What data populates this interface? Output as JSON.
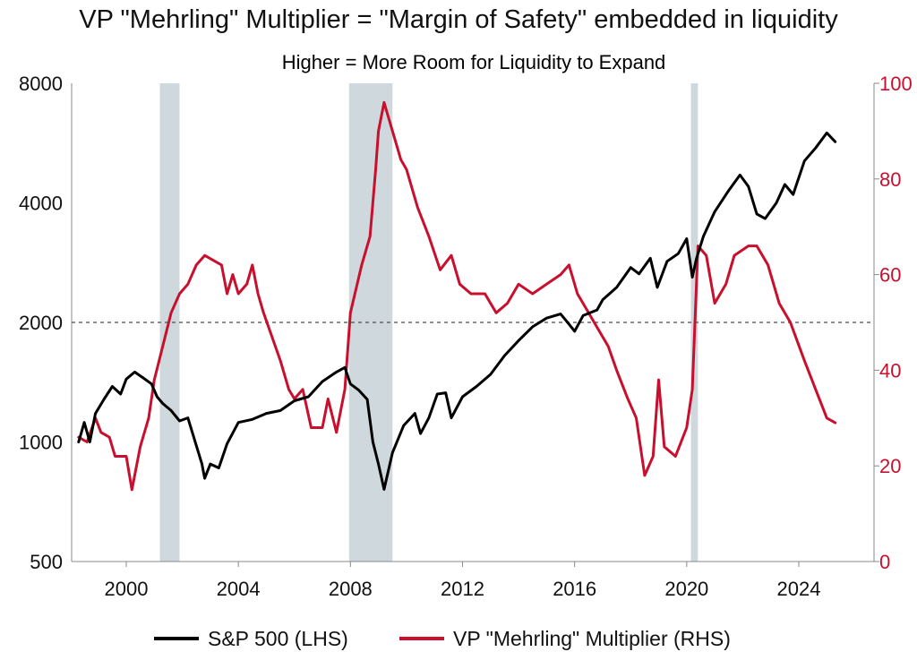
{
  "chart_data": {
    "type": "line",
    "title": "VP \"Mehrling\" Multiplier = \"Margin of Safety\" embedded in liquidity",
    "subtitle": "Higher = More Room for Liquidity to Expand",
    "x_range": [
      1998.3,
      2025.5
    ],
    "x_ticks": [
      "2000",
      "2004",
      "2008",
      "2012",
      "2016",
      "2020",
      "2024"
    ],
    "left_axis": {
      "scale": "log",
      "range": [
        500,
        8000
      ],
      "ticks": [
        "500",
        "1000",
        "2000",
        "4000",
        "8000"
      ],
      "color": "#111111"
    },
    "right_axis": {
      "scale": "linear",
      "range": [
        0,
        100
      ],
      "ticks": [
        "0",
        "20",
        "40",
        "60",
        "80",
        "100"
      ],
      "color": "#c8102e"
    },
    "reference_line": {
      "axis": "left",
      "value": 2000,
      "style": "dashed"
    },
    "shaded_periods": [
      {
        "start": 2001.2,
        "end": 2001.9
      },
      {
        "start": 2007.95,
        "end": 2009.5
      },
      {
        "start": 2020.15,
        "end": 2020.4
      }
    ],
    "legend_position": "bottom",
    "grid": false,
    "series": [
      {
        "name": "S&P 500 (LHS)",
        "axis": "left",
        "color": "#000000",
        "points": [
          [
            1998.3,
            1000
          ],
          [
            1998.5,
            1120
          ],
          [
            1998.7,
            1000
          ],
          [
            1998.9,
            1180
          ],
          [
            1999.2,
            1280
          ],
          [
            1999.5,
            1380
          ],
          [
            1999.8,
            1320
          ],
          [
            2000.0,
            1440
          ],
          [
            2000.3,
            1500
          ],
          [
            2000.6,
            1450
          ],
          [
            2000.9,
            1400
          ],
          [
            2001.1,
            1300
          ],
          [
            2001.3,
            1250
          ],
          [
            2001.6,
            1200
          ],
          [
            2001.9,
            1130
          ],
          [
            2002.2,
            1150
          ],
          [
            2002.5,
            980
          ],
          [
            2002.7,
            880
          ],
          [
            2002.8,
            810
          ],
          [
            2003.0,
            880
          ],
          [
            2003.3,
            860
          ],
          [
            2003.6,
            990
          ],
          [
            2004.0,
            1120
          ],
          [
            2004.5,
            1140
          ],
          [
            2005.0,
            1180
          ],
          [
            2005.5,
            1200
          ],
          [
            2006.0,
            1270
          ],
          [
            2006.5,
            1300
          ],
          [
            2007.0,
            1420
          ],
          [
            2007.5,
            1500
          ],
          [
            2007.8,
            1540
          ],
          [
            2008.0,
            1400
          ],
          [
            2008.3,
            1350
          ],
          [
            2008.6,
            1280
          ],
          [
            2008.8,
            1000
          ],
          [
            2009.0,
            880
          ],
          [
            2009.2,
            760
          ],
          [
            2009.5,
            940
          ],
          [
            2009.9,
            1100
          ],
          [
            2010.3,
            1180
          ],
          [
            2010.5,
            1050
          ],
          [
            2010.8,
            1150
          ],
          [
            2011.1,
            1320
          ],
          [
            2011.4,
            1330
          ],
          [
            2011.6,
            1150
          ],
          [
            2012.0,
            1300
          ],
          [
            2012.5,
            1380
          ],
          [
            2013.0,
            1480
          ],
          [
            2013.5,
            1650
          ],
          [
            2014.0,
            1800
          ],
          [
            2014.5,
            1950
          ],
          [
            2015.0,
            2050
          ],
          [
            2015.5,
            2100
          ],
          [
            2015.8,
            1980
          ],
          [
            2016.0,
            1900
          ],
          [
            2016.3,
            2080
          ],
          [
            2016.8,
            2150
          ],
          [
            2017.0,
            2280
          ],
          [
            2017.5,
            2450
          ],
          [
            2018.0,
            2750
          ],
          [
            2018.3,
            2650
          ],
          [
            2018.7,
            2900
          ],
          [
            2018.95,
            2450
          ],
          [
            2019.3,
            2850
          ],
          [
            2019.7,
            2980
          ],
          [
            2020.0,
            3250
          ],
          [
            2020.2,
            2600
          ],
          [
            2020.35,
            2900
          ],
          [
            2020.6,
            3300
          ],
          [
            2021.0,
            3800
          ],
          [
            2021.5,
            4300
          ],
          [
            2021.9,
            4700
          ],
          [
            2022.2,
            4400
          ],
          [
            2022.5,
            3750
          ],
          [
            2022.8,
            3650
          ],
          [
            2023.2,
            4000
          ],
          [
            2023.5,
            4450
          ],
          [
            2023.8,
            4200
          ],
          [
            2024.2,
            5100
          ],
          [
            2024.6,
            5500
          ],
          [
            2025.0,
            6000
          ],
          [
            2025.3,
            5700
          ]
        ]
      },
      {
        "name": "VP \"Mehrling\" Multiplier (RHS)",
        "axis": "right",
        "color": "#c8102e",
        "points": [
          [
            1998.3,
            26
          ],
          [
            1998.6,
            25
          ],
          [
            1998.9,
            30
          ],
          [
            1999.1,
            27
          ],
          [
            1999.4,
            26
          ],
          [
            1999.6,
            22
          ],
          [
            2000.0,
            22
          ],
          [
            2000.2,
            15
          ],
          [
            2000.5,
            24
          ],
          [
            2000.8,
            30
          ],
          [
            2001.0,
            38
          ],
          [
            2001.3,
            45
          ],
          [
            2001.6,
            52
          ],
          [
            2001.9,
            56
          ],
          [
            2002.2,
            58
          ],
          [
            2002.5,
            62
          ],
          [
            2002.8,
            64
          ],
          [
            2003.1,
            63
          ],
          [
            2003.4,
            62
          ],
          [
            2003.6,
            56
          ],
          [
            2003.8,
            60
          ],
          [
            2004.0,
            56
          ],
          [
            2004.3,
            58
          ],
          [
            2004.5,
            62
          ],
          [
            2004.7,
            56
          ],
          [
            2004.9,
            52
          ],
          [
            2005.2,
            47
          ],
          [
            2005.5,
            42
          ],
          [
            2005.8,
            36
          ],
          [
            2006.0,
            34
          ],
          [
            2006.3,
            36
          ],
          [
            2006.6,
            28
          ],
          [
            2007.0,
            28
          ],
          [
            2007.2,
            34
          ],
          [
            2007.5,
            27
          ],
          [
            2007.8,
            36
          ],
          [
            2008.0,
            52
          ],
          [
            2008.4,
            62
          ],
          [
            2008.7,
            68
          ],
          [
            2008.9,
            82
          ],
          [
            2009.0,
            90
          ],
          [
            2009.2,
            96
          ],
          [
            2009.5,
            90
          ],
          [
            2009.8,
            84
          ],
          [
            2010.0,
            82
          ],
          [
            2010.4,
            74
          ],
          [
            2010.8,
            68
          ],
          [
            2011.2,
            61
          ],
          [
            2011.6,
            64
          ],
          [
            2011.9,
            58
          ],
          [
            2012.3,
            56
          ],
          [
            2012.8,
            56
          ],
          [
            2013.2,
            52
          ],
          [
            2013.6,
            54
          ],
          [
            2014.0,
            58
          ],
          [
            2014.5,
            56
          ],
          [
            2015.0,
            58
          ],
          [
            2015.5,
            60
          ],
          [
            2015.8,
            62
          ],
          [
            2016.1,
            56
          ],
          [
            2016.5,
            52
          ],
          [
            2016.9,
            48
          ],
          [
            2017.2,
            45
          ],
          [
            2017.5,
            40
          ],
          [
            2017.9,
            34
          ],
          [
            2018.2,
            30
          ],
          [
            2018.5,
            18
          ],
          [
            2018.8,
            22
          ],
          [
            2019.0,
            38
          ],
          [
            2019.2,
            24
          ],
          [
            2019.6,
            22
          ],
          [
            2020.0,
            28
          ],
          [
            2020.2,
            36
          ],
          [
            2020.4,
            66
          ],
          [
            2020.7,
            64
          ],
          [
            2021.0,
            54
          ],
          [
            2021.4,
            58
          ],
          [
            2021.7,
            64
          ],
          [
            2022.2,
            66
          ],
          [
            2022.5,
            66
          ],
          [
            2022.9,
            62
          ],
          [
            2023.3,
            54
          ],
          [
            2023.7,
            50
          ],
          [
            2024.2,
            42
          ],
          [
            2024.6,
            36
          ],
          [
            2025.0,
            30
          ],
          [
            2025.3,
            29
          ]
        ]
      }
    ]
  }
}
